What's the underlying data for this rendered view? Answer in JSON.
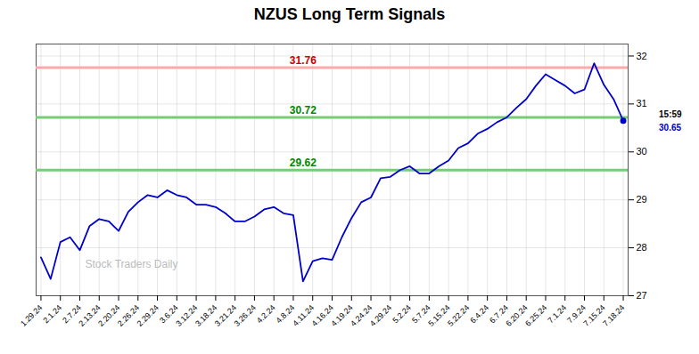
{
  "chart_data": {
    "type": "line",
    "title": "NZUS Long Term Signals",
    "categories": [
      "1.29.24",
      null,
      "2.1.24",
      null,
      "2.7.24",
      null,
      "2.13.24",
      null,
      "2.20.24",
      null,
      "2.26.24",
      null,
      "2.29.24",
      null,
      "3.6.24",
      null,
      "3.12.24",
      null,
      "3.18.24",
      null,
      "3.21.24",
      null,
      "3.26.24",
      null,
      "4.2.24",
      null,
      "4.8.24",
      null,
      "4.11.24",
      null,
      "4.16.24",
      null,
      "4.19.24",
      null,
      "4.24.24",
      null,
      "4.29.24",
      null,
      "5.2.24",
      null,
      "5.7.24",
      null,
      "5.15.24",
      null,
      "5.22.24",
      null,
      "6.4.24",
      null,
      "6.7.24",
      null,
      "6.20.24",
      null,
      "6.25.24",
      null,
      "7.1.24",
      null,
      "7.9.24",
      null,
      "7.15.24",
      null,
      "7.18.24"
    ],
    "values": [
      27.8,
      27.35,
      28.12,
      28.22,
      27.95,
      28.45,
      28.6,
      28.55,
      28.35,
      28.75,
      28.95,
      29.1,
      29.05,
      29.2,
      29.1,
      29.05,
      28.9,
      28.9,
      28.85,
      28.72,
      28.55,
      28.55,
      28.65,
      28.8,
      28.85,
      28.72,
      28.68,
      27.3,
      27.72,
      27.78,
      27.75,
      28.22,
      28.62,
      28.95,
      29.05,
      29.45,
      29.48,
      29.62,
      29.7,
      29.55,
      29.55,
      29.7,
      29.82,
      30.08,
      30.18,
      30.38,
      30.48,
      30.62,
      30.72,
      30.92,
      31.1,
      31.38,
      31.62,
      31.5,
      31.38,
      31.22,
      31.3,
      31.85,
      31.4,
      31.1,
      30.65
    ],
    "color": "#0000cc",
    "hlines": [
      {
        "value": 31.76,
        "color": "#ffaaaa",
        "label_color": "#cc0000"
      },
      {
        "value": 30.72,
        "color": "#77cc77",
        "label_color": "#008800"
      },
      {
        "value": 29.62,
        "color": "#77cc77",
        "label_color": "#008800"
      }
    ],
    "signal": {
      "time": "15:59",
      "price": 30.65
    },
    "watermark": "Stock Traders Daily",
    "ylim": [
      27.0,
      32.25
    ],
    "yticks": [
      27,
      28,
      29,
      30,
      31,
      32
    ],
    "grid": true
  }
}
